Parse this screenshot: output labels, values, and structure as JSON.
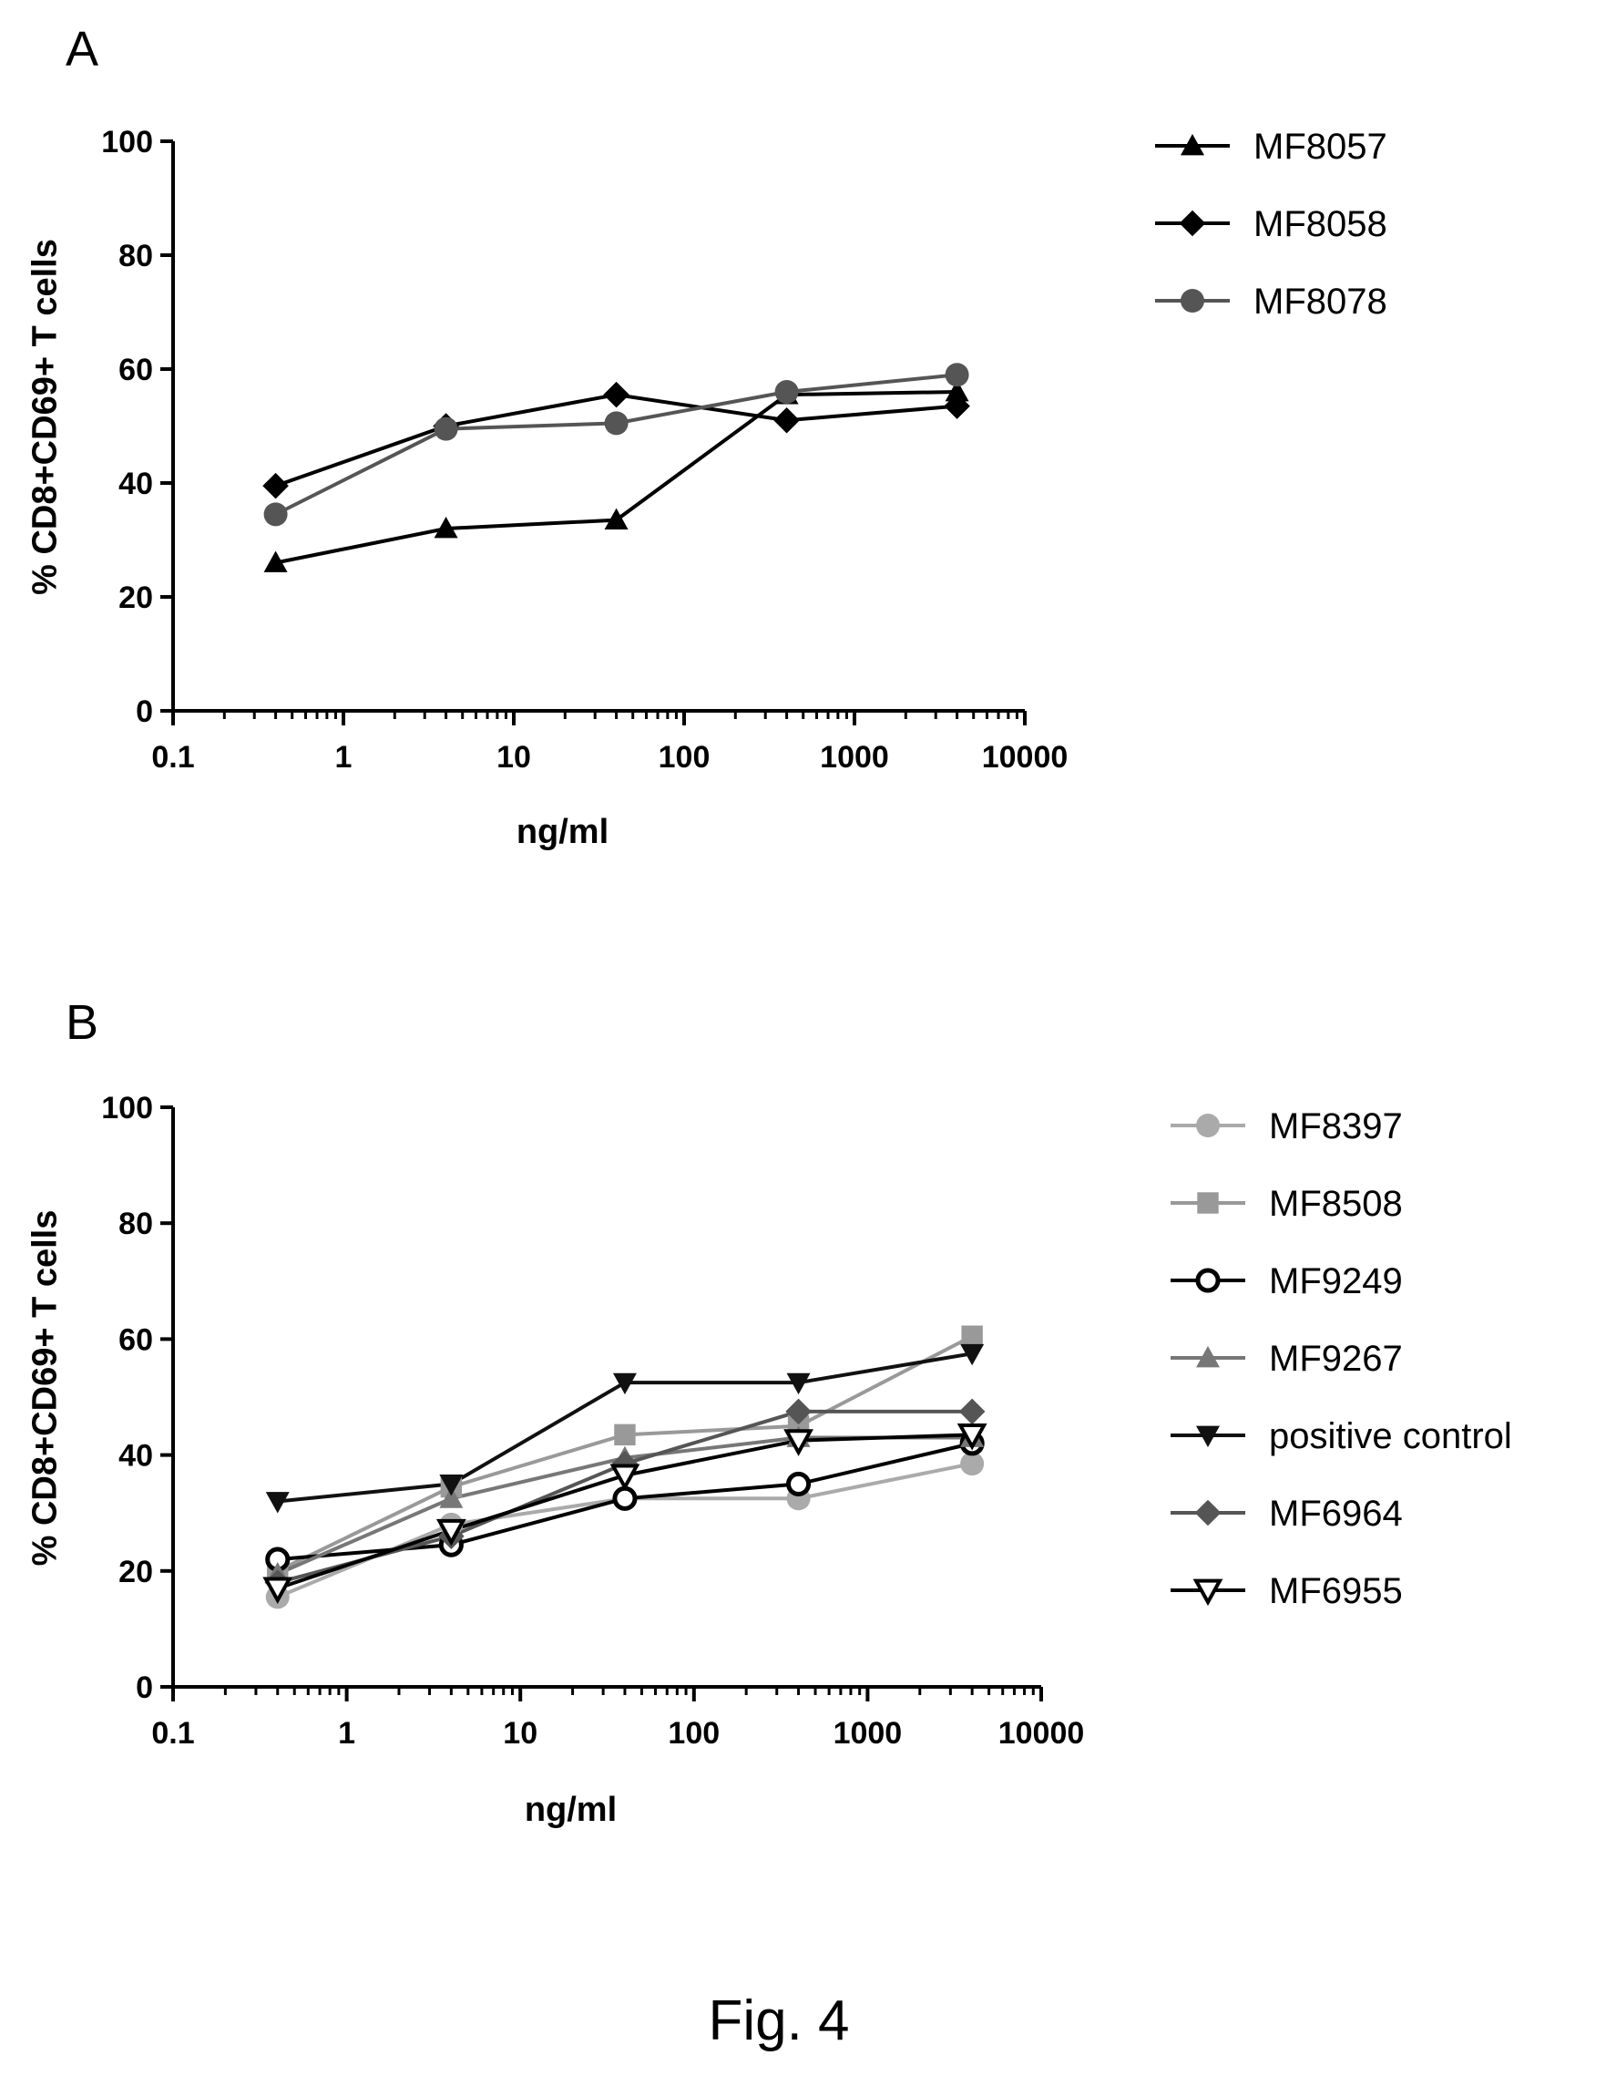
{
  "caption": "Fig. 4",
  "chart_data": [
    {
      "panel": "A",
      "type": "line",
      "xscale": "log",
      "xlabel": "ng/ml",
      "ylabel": "% CD8+CD69+ T cells",
      "xlim": [
        0.1,
        10000
      ],
      "ylim": [
        0,
        100
      ],
      "xticks": [
        0.1,
        1,
        10,
        100,
        1000,
        10000
      ],
      "xtick_labels": [
        "0.1",
        "1",
        "10",
        "100",
        "1000",
        "10000"
      ],
      "yticks": [
        0,
        20,
        40,
        60,
        80,
        100
      ],
      "ytick_labels": [
        "0",
        "20",
        "40",
        "60",
        "80",
        "100"
      ],
      "grid": false,
      "legend_position": "right",
      "x": [
        0.4,
        4,
        40,
        400,
        4000
      ],
      "series": [
        {
          "name": "MF8057",
          "values": [
            26,
            32,
            33.5,
            55.5,
            56
          ],
          "color": "#000000",
          "marker": "triangle-up"
        },
        {
          "name": "MF8058",
          "values": [
            39.5,
            50,
            55.5,
            51,
            53.5
          ],
          "color": "#000000",
          "marker": "diamond"
        },
        {
          "name": "MF8078",
          "values": [
            34.5,
            49.5,
            50.5,
            56,
            59
          ],
          "color": "#555555",
          "marker": "circle"
        }
      ]
    },
    {
      "panel": "B",
      "type": "line",
      "xscale": "log",
      "xlabel": "ng/ml",
      "ylabel": "% CD8+CD69+ T cells",
      "xlim": [
        0.1,
        10000
      ],
      "ylim": [
        0,
        100
      ],
      "xticks": [
        0.1,
        1,
        10,
        100,
        1000,
        10000
      ],
      "xtick_labels": [
        "0.1",
        "1",
        "10",
        "100",
        "1000",
        "10000"
      ],
      "yticks": [
        0,
        20,
        40,
        60,
        80,
        100
      ],
      "ytick_labels": [
        "0",
        "20",
        "40",
        "60",
        "80",
        "100"
      ],
      "grid": false,
      "legend_position": "right",
      "x": [
        0.4,
        4,
        40,
        400,
        4000
      ],
      "series": [
        {
          "name": "MF8397",
          "values": [
            15.5,
            28,
            32.5,
            32.5,
            38.5
          ],
          "color": "#aaaaaa",
          "marker": "circle"
        },
        {
          "name": "MF8508",
          "values": [
            20,
            34.5,
            43.5,
            45,
            60.5
          ],
          "color": "#999999",
          "marker": "square"
        },
        {
          "name": "MF9249",
          "values": [
            22,
            24.5,
            32.5,
            35,
            42
          ],
          "color": "#000000",
          "marker": "circle-open"
        },
        {
          "name": "MF9267",
          "values": [
            19.5,
            32.5,
            39.5,
            43,
            43
          ],
          "color": "#777777",
          "marker": "triangle-up"
        },
        {
          "name": "positive control",
          "values": [
            32,
            35,
            52.5,
            52.5,
            57.5
          ],
          "color": "#111111",
          "marker": "triangle-down"
        },
        {
          "name": "MF6964",
          "values": [
            18,
            26,
            38.5,
            47.5,
            47.5
          ],
          "color": "#555555",
          "marker": "diamond"
        },
        {
          "name": "MF6955",
          "values": [
            17,
            27,
            36.5,
            42.5,
            43.5
          ],
          "color": "#000000",
          "marker": "triangle-down-open"
        }
      ]
    }
  ]
}
